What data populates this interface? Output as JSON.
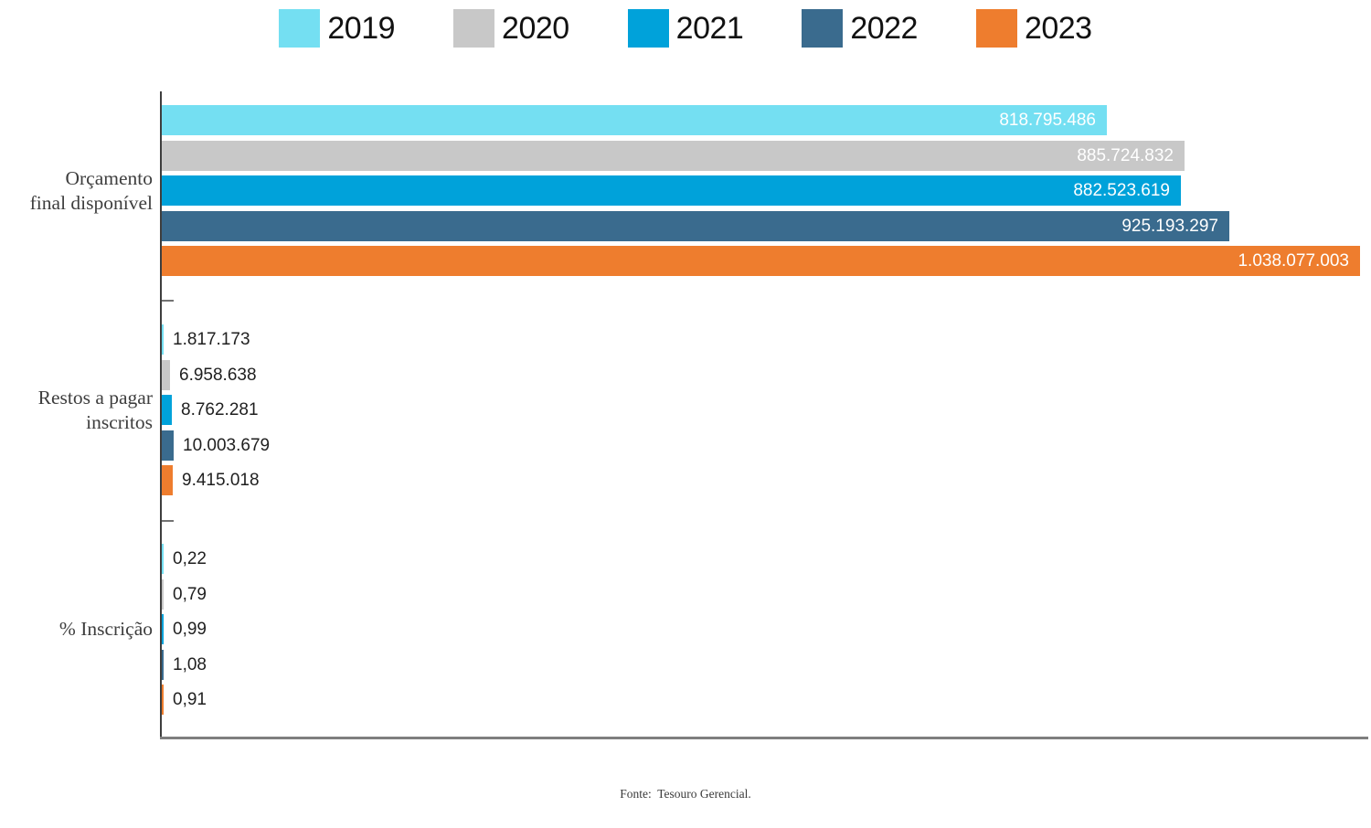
{
  "chart_data": {
    "type": "bar",
    "orientation": "horizontal",
    "legend_position": "top",
    "grid": false,
    "xlim": [
      0,
      1048000000
    ],
    "categories": [
      {
        "name": "Orçamento final disponível",
        "lines": [
          "Orçamento",
          "final disponível"
        ],
        "value_labels": "inside"
      },
      {
        "name": "Restos a pagar inscritos",
        "lines": [
          "Restos a pagar",
          "inscritos"
        ],
        "value_labels": "outside"
      },
      {
        "name": "% Inscrição",
        "lines": [
          "% Inscrição"
        ],
        "value_labels": "outside"
      }
    ],
    "series": [
      {
        "name": "2019",
        "color": "#74DFF2",
        "values": [
          818795486,
          1817173,
          0.22
        ],
        "labels": [
          "818.795.486",
          "1.817.173",
          "0,22"
        ]
      },
      {
        "name": "2020",
        "color": "#C8C8C8",
        "values": [
          885724832,
          6958638,
          0.79
        ],
        "labels": [
          "885.724.832",
          "6.958.638",
          "0,79"
        ]
      },
      {
        "name": "2021",
        "color": "#00A2DA",
        "values": [
          882523619,
          8762281,
          0.99
        ],
        "labels": [
          "882.523.619",
          "8.762.281",
          "0,99"
        ]
      },
      {
        "name": "2022",
        "color": "#3A6B8E",
        "values": [
          925193297,
          10003679,
          1.08
        ],
        "labels": [
          "925.193.297",
          "10.003.679",
          "1,08"
        ]
      },
      {
        "name": "2023",
        "color": "#EE7D2E",
        "values": [
          1038077003,
          9415018,
          0.91
        ],
        "labels": [
          "1.038.077.003",
          "9.415.018",
          "0,91"
        ]
      }
    ],
    "source": "Fonte:  Tesouro Gerencial."
  },
  "footer": {
    "source": "Fonte:  Tesouro Gerencial."
  }
}
